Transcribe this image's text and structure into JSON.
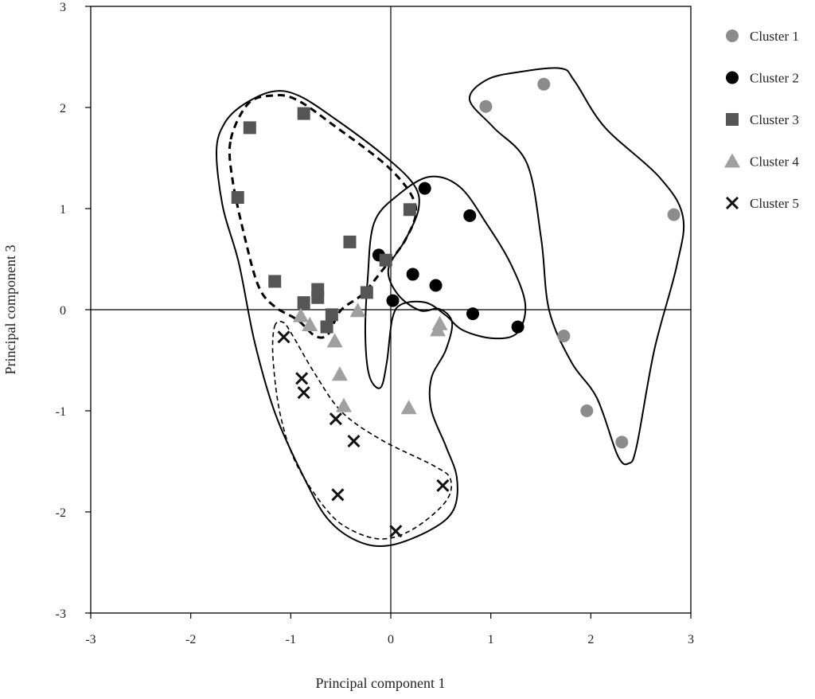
{
  "chart_data": {
    "type": "scatter",
    "title": "",
    "xlabel": "Principal component 1",
    "ylabel": "Principal component 3",
    "xlim": [
      -3,
      3
    ],
    "ylim": [
      -3,
      3
    ],
    "xticks": [
      "-3",
      "-2",
      "-1",
      "0",
      "1",
      "2",
      "3"
    ],
    "yticks": [
      "-3",
      "-2",
      "-1",
      "0",
      "1",
      "2",
      "3"
    ],
    "grid": false,
    "legend_position": "top-right",
    "series": [
      {
        "name": "Cluster 1",
        "marker": "circle",
        "color": "#8c8c8c",
        "points": [
          [
            0.95,
            2.01
          ],
          [
            1.53,
            2.23
          ],
          [
            2.83,
            0.94
          ],
          [
            1.73,
            -0.26
          ],
          [
            1.96,
            -1.0
          ],
          [
            2.31,
            -1.31
          ]
        ]
      },
      {
        "name": "Cluster 2",
        "marker": "circle",
        "color": "#000000",
        "points": [
          [
            0.34,
            1.2
          ],
          [
            0.79,
            0.93
          ],
          [
            -0.12,
            0.54
          ],
          [
            0.22,
            0.35
          ],
          [
            0.45,
            0.24
          ],
          [
            0.02,
            0.09
          ],
          [
            0.82,
            -0.04
          ],
          [
            1.27,
            -0.17
          ]
        ]
      },
      {
        "name": "Cluster 3",
        "marker": "square",
        "color": "#555555",
        "points": [
          [
            -1.41,
            1.8
          ],
          [
            -0.87,
            1.94
          ],
          [
            -1.53,
            1.11
          ],
          [
            -0.41,
            0.67
          ],
          [
            0.19,
            0.99
          ],
          [
            -0.05,
            0.49
          ],
          [
            -1.16,
            0.28
          ],
          [
            -0.73,
            0.2
          ],
          [
            -0.73,
            0.12
          ],
          [
            -0.87,
            0.07
          ],
          [
            -0.24,
            0.17
          ],
          [
            -0.59,
            -0.05
          ],
          [
            -0.64,
            -0.17
          ]
        ]
      },
      {
        "name": "Cluster 4",
        "marker": "triangle",
        "color": "#a0a0a0",
        "points": [
          [
            -0.9,
            -0.06
          ],
          [
            -0.81,
            -0.15
          ],
          [
            -0.33,
            -0.01
          ],
          [
            -0.56,
            -0.31
          ],
          [
            -0.51,
            -0.64
          ],
          [
            -0.47,
            -0.95
          ],
          [
            0.18,
            -0.97
          ],
          [
            0.49,
            -0.14
          ],
          [
            0.47,
            -0.2
          ]
        ]
      },
      {
        "name": "Cluster 5",
        "marker": "x",
        "color": "#111111",
        "points": [
          [
            -1.07,
            -0.27
          ],
          [
            -0.89,
            -0.68
          ],
          [
            -0.87,
            -0.82
          ],
          [
            -0.55,
            -1.08
          ],
          [
            -0.37,
            -1.3
          ],
          [
            -0.53,
            -1.83
          ],
          [
            0.05,
            -2.19
          ],
          [
            0.52,
            -1.74
          ]
        ]
      }
    ]
  }
}
